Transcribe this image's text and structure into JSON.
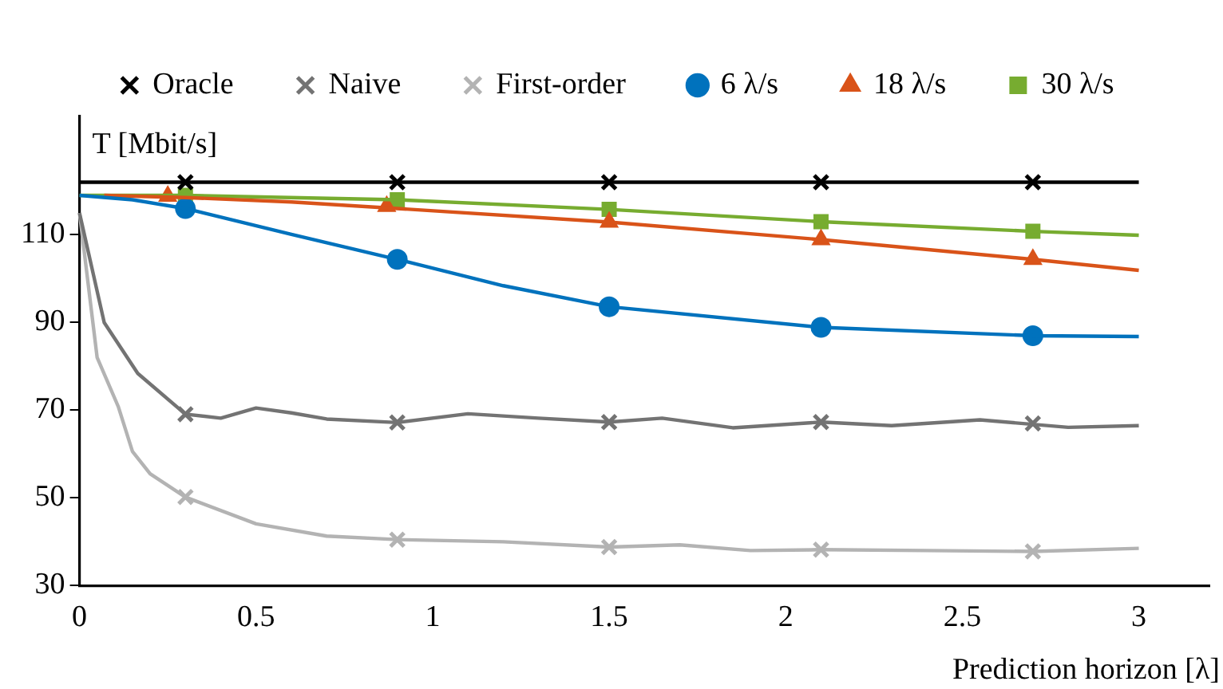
{
  "chart_data": {
    "type": "line",
    "ylabel": "T [Mbit/s]",
    "xlabel": "Prediction horizon [λ]",
    "xlim": [
      0,
      3.2
    ],
    "ylim": [
      30,
      137
    ],
    "xticks": [
      0,
      0.5,
      1,
      1.5,
      2,
      2.5,
      3
    ],
    "yticks": [
      30,
      50,
      70,
      90,
      110
    ],
    "grid": false,
    "legend": "top",
    "line_style": "solid",
    "series": [
      {
        "type": "line",
        "color": "#000000",
        "marker": "none",
        "x": [
          0,
          0.5,
          1,
          1.5,
          2,
          2.5,
          3
        ],
        "values": [
          122,
          122,
          122,
          122,
          122,
          122,
          122
        ]
      },
      {
        "type": "line",
        "color": "#737373",
        "marker": "none",
        "x": [
          0,
          0.07,
          0.165,
          0.3,
          0.4,
          0.5,
          0.6,
          0.7,
          0.9,
          1.1,
          1.3,
          1.5,
          1.65,
          1.85,
          2.1,
          2.3,
          2.55,
          2.8,
          3
        ],
        "values": [
          115,
          90,
          78.4,
          69.1,
          68.2,
          70.5,
          69.4,
          68,
          67.2,
          69.2,
          68.2,
          67.3,
          68.2,
          66,
          67.3,
          66.5,
          67.8,
          66.1,
          66.5
        ]
      },
      {
        "type": "line",
        "color": "#b3b3b3",
        "marker": "none",
        "x": [
          0,
          0.05,
          0.11,
          0.15,
          0.2,
          0.3,
          0.5,
          0.7,
          0.9,
          1.2,
          1.5,
          1.7,
          1.9,
          2.1,
          2.4,
          2.7,
          3
        ],
        "values": [
          115,
          82,
          70.8,
          60.6,
          55.5,
          50.2,
          44.1,
          41.3,
          40.5,
          40,
          38.8,
          39.3,
          38,
          38.2,
          38,
          37.8,
          38.5
        ]
      },
      {
        "type": "line",
        "color": "#0072bd",
        "marker": "none",
        "x": [
          0,
          0.15,
          0.3,
          0.6,
          0.9,
          1.2,
          1.5,
          2.1,
          2.7,
          3
        ],
        "values": [
          119,
          118,
          116,
          110.1,
          104.4,
          98.4,
          93.6,
          88.9,
          87,
          86.8
        ]
      },
      {
        "type": "line",
        "color": "#d95319",
        "marker": "none",
        "x": [
          0.07,
          0.3,
          0.6,
          0.9,
          1.5,
          2.1,
          2.7,
          3
        ],
        "values": [
          119,
          118.5,
          117.5,
          116,
          112.9,
          108.9,
          104.4,
          101.9
        ]
      },
      {
        "type": "line",
        "color": "#77ac30",
        "marker": "none",
        "x": [
          0,
          0.3,
          0.9,
          1.5,
          2.1,
          2.7,
          3
        ],
        "values": [
          119,
          119,
          118,
          115.8,
          113,
          110.8,
          109.9
        ]
      },
      {
        "type": "scatter",
        "name": "Oracle",
        "color": "#000000",
        "marker": "cross",
        "x": [
          0.3,
          0.9,
          1.5,
          2.1,
          2.7
        ],
        "values": [
          122,
          122,
          122,
          122,
          122
        ]
      },
      {
        "type": "scatter",
        "name": "Naive",
        "color": "#737373",
        "marker": "cross",
        "x": [
          0.3,
          0.9,
          1.5,
          2.1,
          2.7
        ],
        "values": [
          69.1,
          67.2,
          67.3,
          67.3,
          67
        ]
      },
      {
        "type": "scatter",
        "name": "First-order",
        "color": "#b3b3b3",
        "marker": "cross",
        "x": [
          0.3,
          0.9,
          1.5,
          2.1,
          2.7
        ],
        "values": [
          50.2,
          40.5,
          38.8,
          38.2,
          37.8
        ]
      },
      {
        "type": "scatter",
        "name": "6 λ/s",
        "color": "#0072bd",
        "marker": "circle",
        "x": [
          0.3,
          0.9,
          1.5,
          2.1,
          2.7
        ],
        "values": [
          116,
          104.4,
          93.6,
          88.9,
          87
        ]
      },
      {
        "type": "scatter",
        "name": "18 λ/s",
        "color": "#d95319",
        "marker": "triangle",
        "x": [
          0.25,
          0.87,
          1.5,
          2.1,
          2.7
        ],
        "values": [
          118.8,
          116.5,
          112.9,
          108.9,
          104.4
        ]
      },
      {
        "type": "scatter",
        "name": "30 λ/s",
        "color": "#77ac30",
        "marker": "square",
        "x": [
          0.3,
          0.9,
          1.5,
          2.1,
          2.7
        ],
        "values": [
          119,
          118,
          115.8,
          113,
          110.8
        ]
      }
    ]
  }
}
